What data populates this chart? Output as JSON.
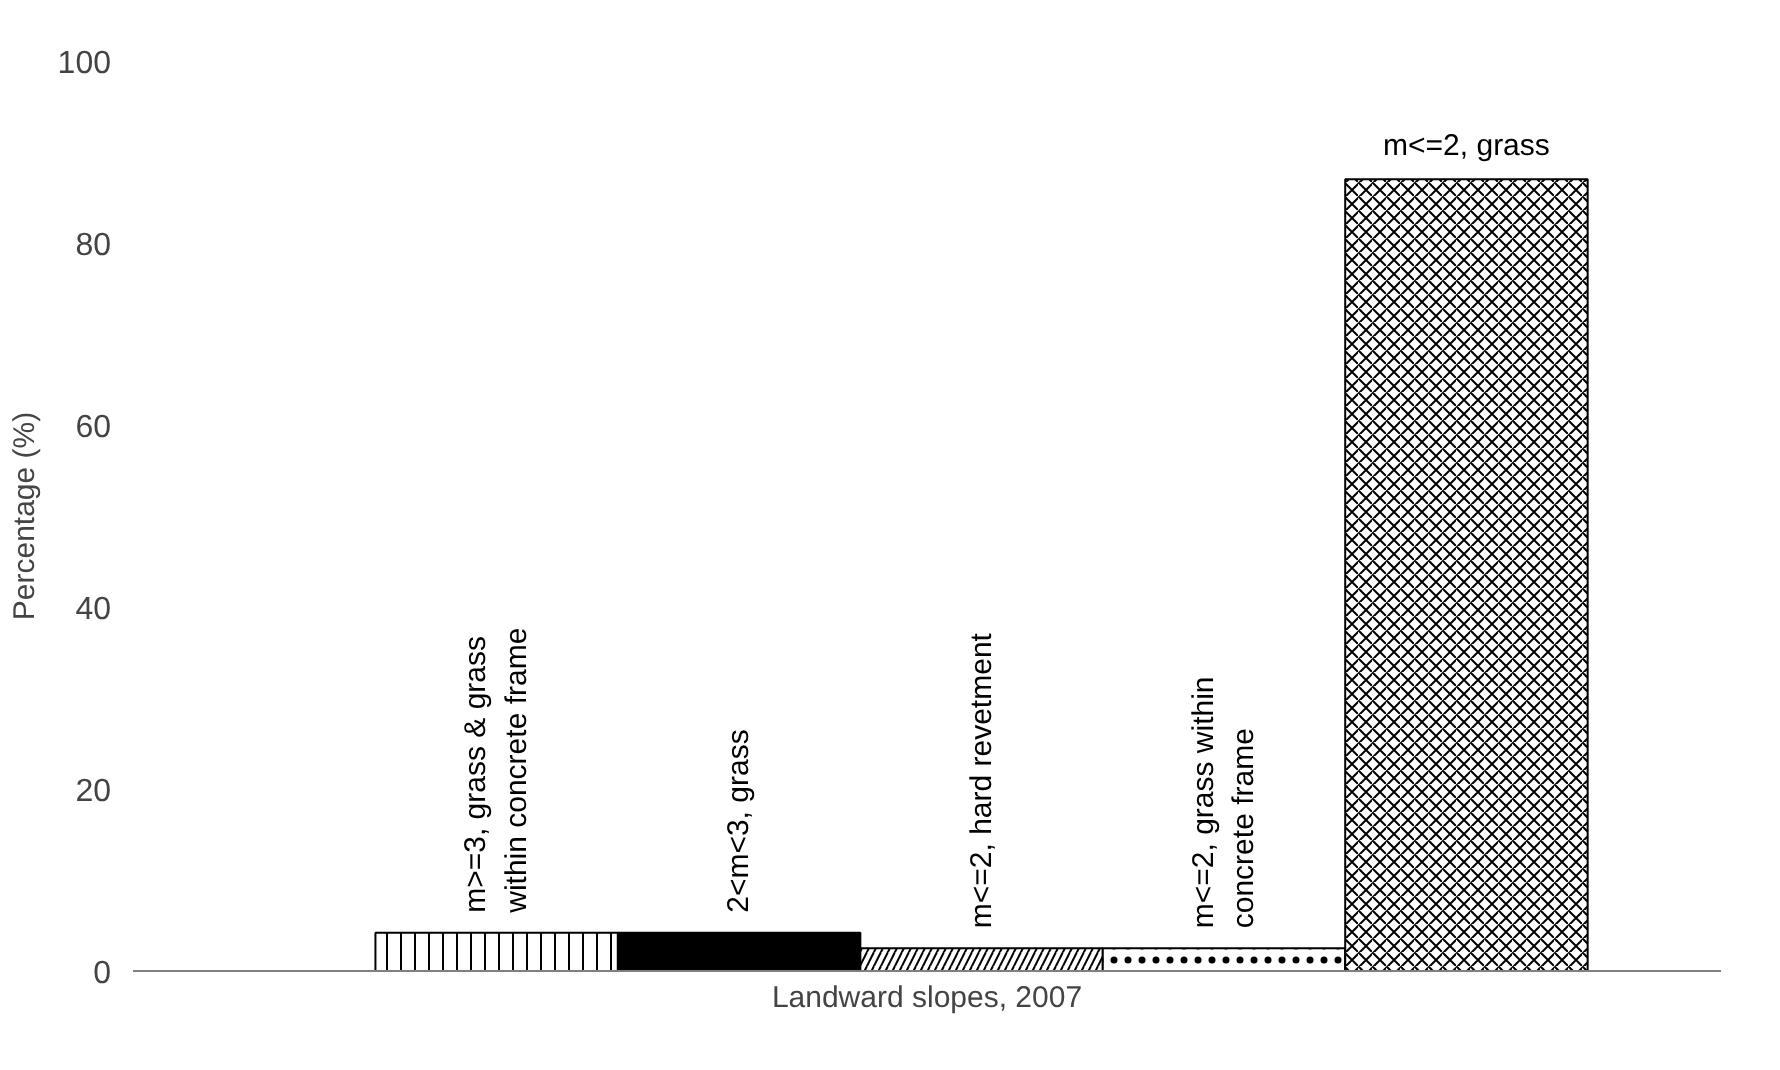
{
  "chart_data": {
    "type": "bar",
    "xlabel": "Landward slopes, 2007",
    "ylabel": "Percentage (%)",
    "categories": [
      "m>=3, grass & grass within concrete frame",
      "2<m<3, grass",
      "m<=2, hard revetment",
      "m<=2, grass within concrete frame",
      "m<=2, grass"
    ],
    "values": [
      4.2,
      4.2,
      2.5,
      2.5,
      87
    ],
    "colors": [
      "#ffffff",
      "#000000",
      "#ffffff",
      "#ffffff",
      "#ffffff"
    ],
    "ylim": [
      0,
      100
    ],
    "yticks": [
      0,
      20,
      40,
      60,
      80,
      100
    ],
    "grid": false
  }
}
